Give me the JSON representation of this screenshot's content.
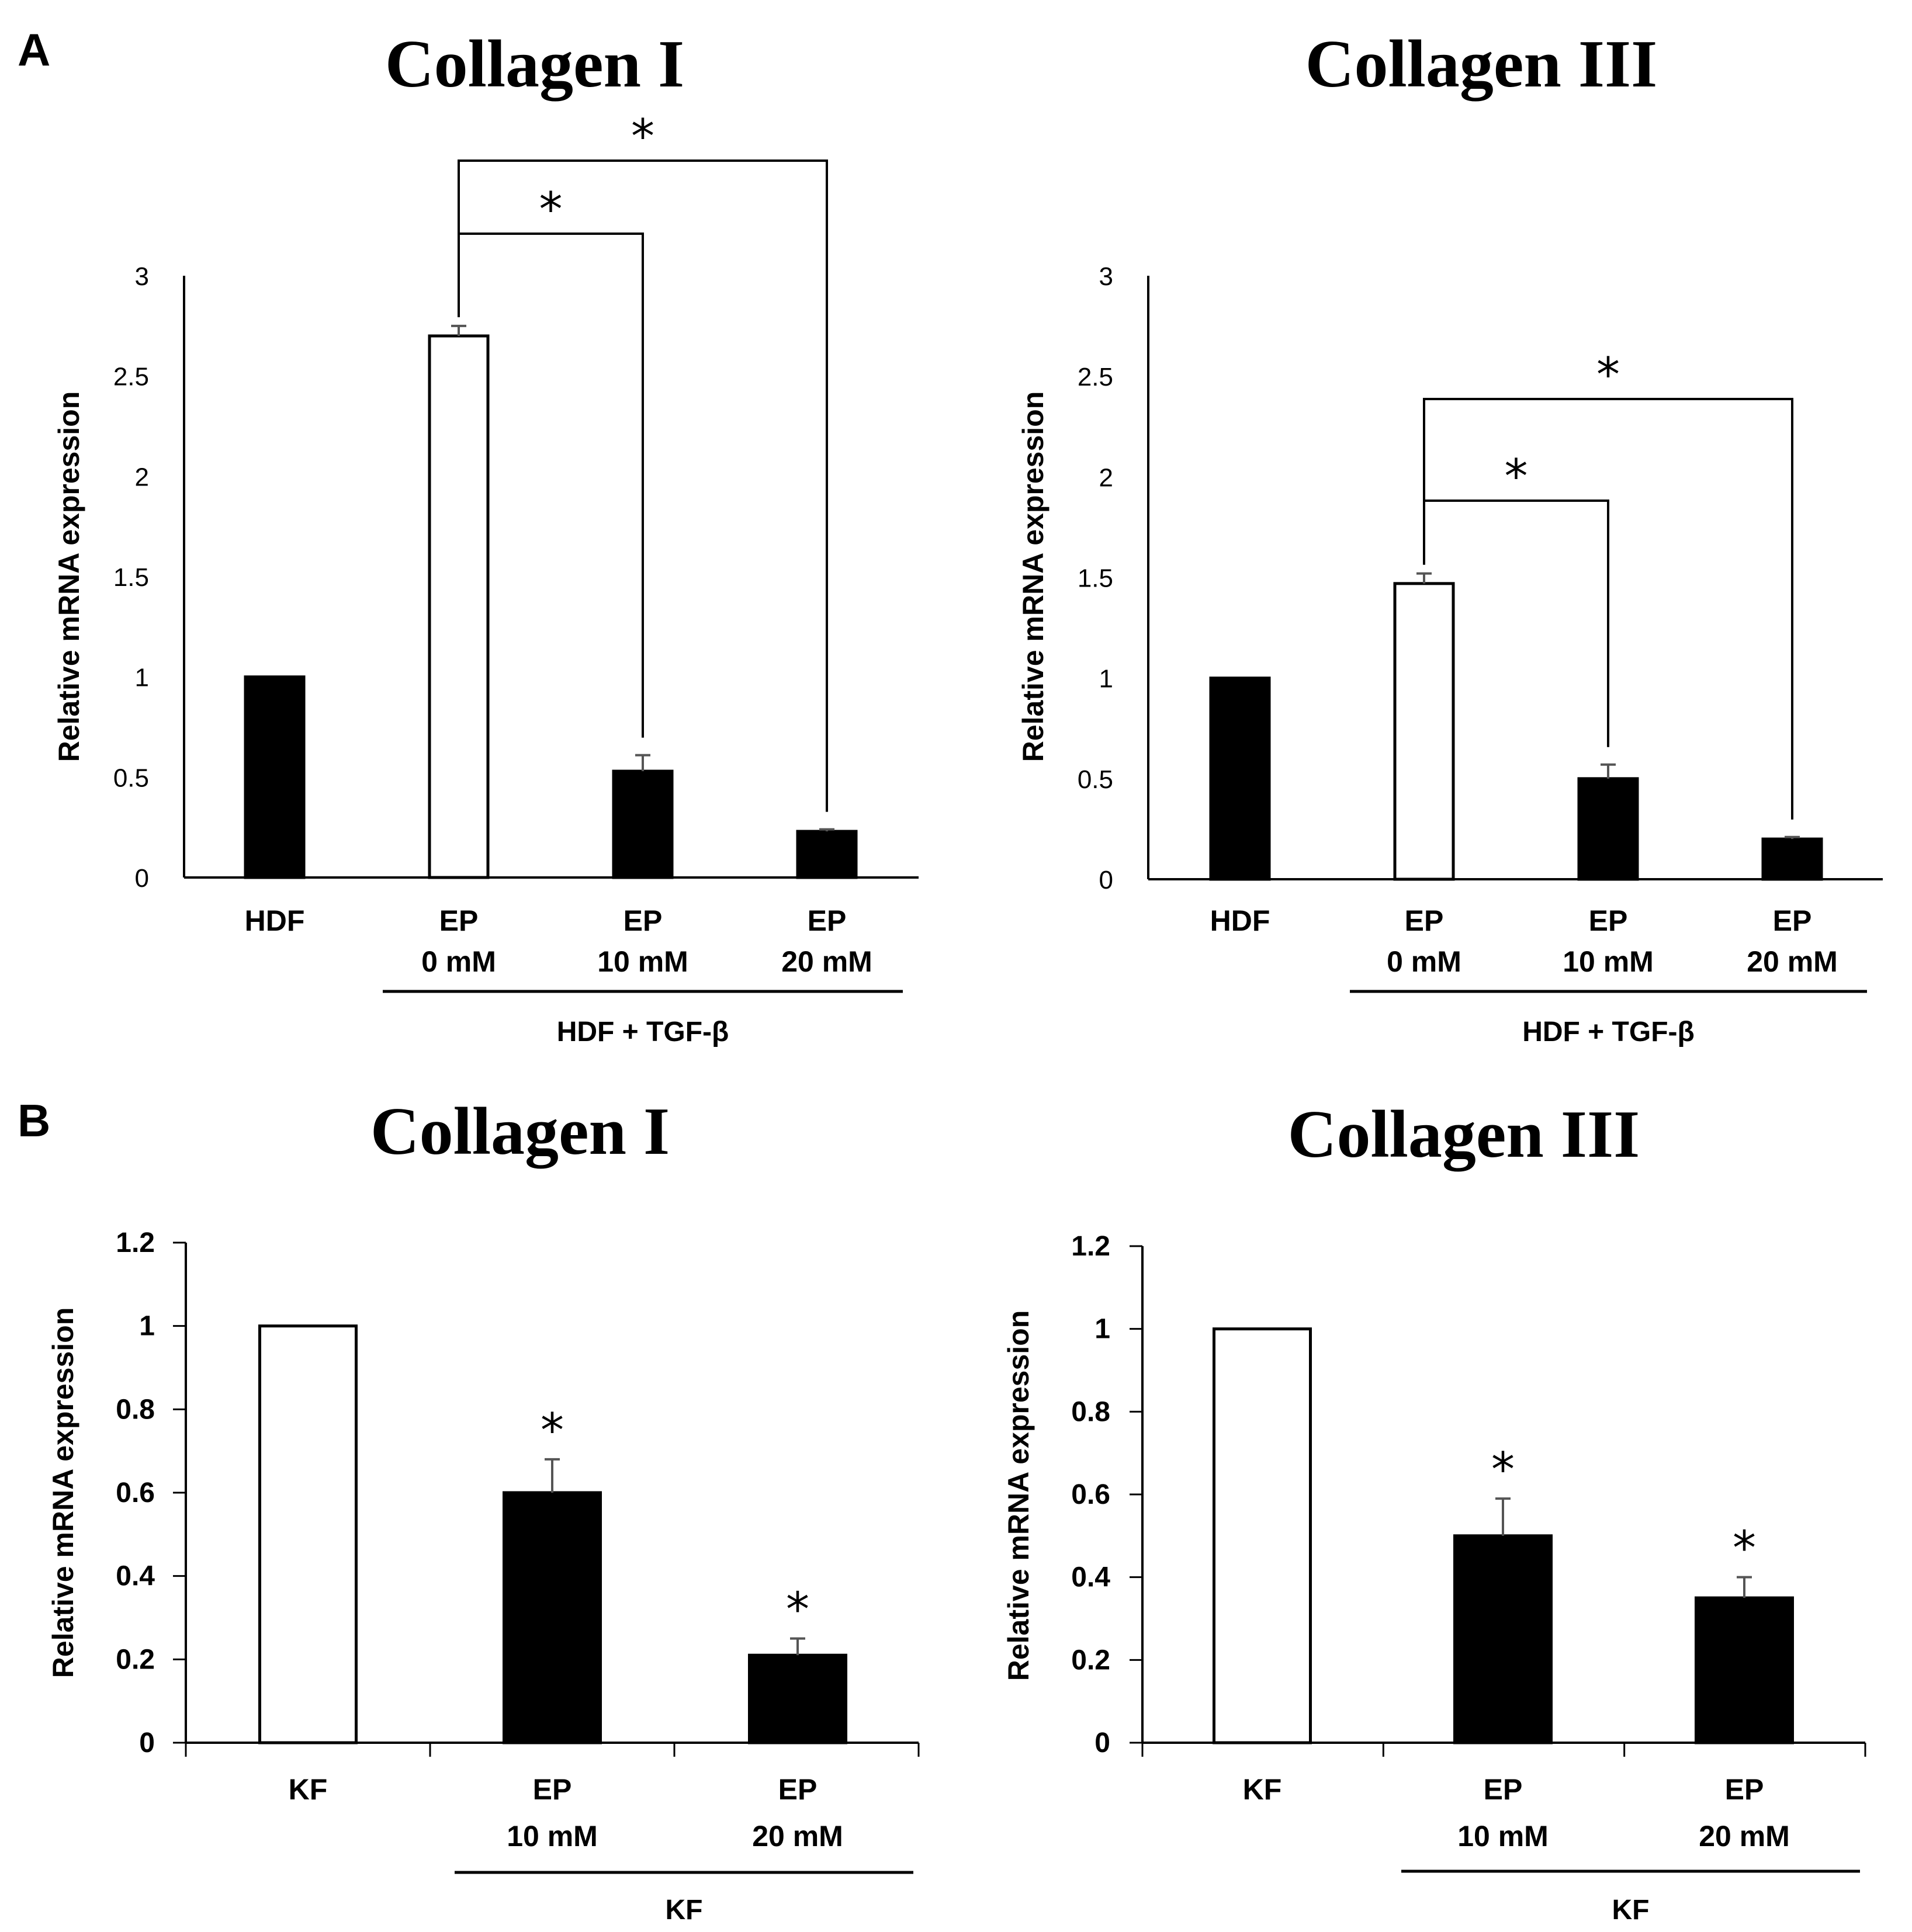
{
  "panels": {
    "a": {
      "letter": "A"
    },
    "b": {
      "letter": "B"
    }
  },
  "colors": {
    "filled": "#000000",
    "open": "#ffffff",
    "stroke": "#000000",
    "error": "#555555"
  },
  "chart_data": [
    {
      "id": "a1",
      "type": "bar",
      "title": "Collagen I",
      "ylabel": "Relative mRNA expression",
      "ylim": [
        0,
        3
      ],
      "yticks": [
        "0",
        "0.5",
        "1",
        "1.5",
        "2",
        "2.5",
        "3"
      ],
      "categories": [
        [
          "HDF"
        ],
        [
          "EP",
          "0 mM"
        ],
        [
          "EP",
          "10 mM"
        ],
        [
          "EP",
          "20 mM"
        ]
      ],
      "values": [
        1.0,
        2.7,
        0.53,
        0.23
      ],
      "errors": [
        0.0,
        0.05,
        0.08,
        0.01
      ],
      "fills": [
        "filled",
        "open",
        "filled",
        "filled"
      ],
      "group_label": "HDF + TGF-β",
      "significance": [
        {
          "from": 1,
          "to": 2,
          "label": "*"
        },
        {
          "from": 1,
          "to": 3,
          "label": "*"
        }
      ]
    },
    {
      "id": "a2",
      "type": "bar",
      "title": "Collagen III",
      "ylabel": "Relative mRNA expression",
      "ylim": [
        0,
        3
      ],
      "yticks": [
        "0",
        "0.5",
        "1",
        "1.5",
        "2",
        "2.5",
        "3"
      ],
      "categories": [
        [
          "HDF"
        ],
        [
          "EP",
          "0 mM"
        ],
        [
          "EP",
          "10 mM"
        ],
        [
          "EP",
          "20 mM"
        ]
      ],
      "values": [
        1.0,
        1.47,
        0.5,
        0.2
      ],
      "errors": [
        0.0,
        0.05,
        0.07,
        0.01
      ],
      "fills": [
        "filled",
        "open",
        "filled",
        "filled"
      ],
      "group_label": "HDF + TGF-β",
      "significance": [
        {
          "from": 1,
          "to": 2,
          "label": "*"
        },
        {
          "from": 1,
          "to": 3,
          "label": "*"
        }
      ]
    },
    {
      "id": "b1",
      "type": "bar",
      "title": "Collagen I",
      "ylabel": "Relative mRNA expression",
      "ylim": [
        0,
        1.2
      ],
      "yticks": [
        "0",
        "0.2",
        "0.4",
        "0.6",
        "0.8",
        "1",
        "1.2"
      ],
      "categories": [
        [
          "KF"
        ],
        [
          "EP",
          "10 mM"
        ],
        [
          "EP",
          "20 mM"
        ]
      ],
      "values": [
        1.0,
        0.6,
        0.21
      ],
      "errors": [
        0.0,
        0.08,
        0.04
      ],
      "fills": [
        "open",
        "filled",
        "filled"
      ],
      "group_label": "KF",
      "stars": [
        "",
        "*",
        "*"
      ]
    },
    {
      "id": "b2",
      "type": "bar",
      "title": "Collagen III",
      "ylabel": "Relative mRNA expression",
      "ylim": [
        0,
        1.2
      ],
      "yticks": [
        "0",
        "0.2",
        "0.4",
        "0.6",
        "0.8",
        "1",
        "1.2"
      ],
      "categories": [
        [
          "KF"
        ],
        [
          "EP",
          "10 mM"
        ],
        [
          "EP",
          "20 mM"
        ]
      ],
      "values": [
        1.0,
        0.5,
        0.35
      ],
      "errors": [
        0.0,
        0.09,
        0.05
      ],
      "fills": [
        "open",
        "filled",
        "filled"
      ],
      "group_label": "KF",
      "stars": [
        "",
        "*",
        "*"
      ]
    }
  ]
}
